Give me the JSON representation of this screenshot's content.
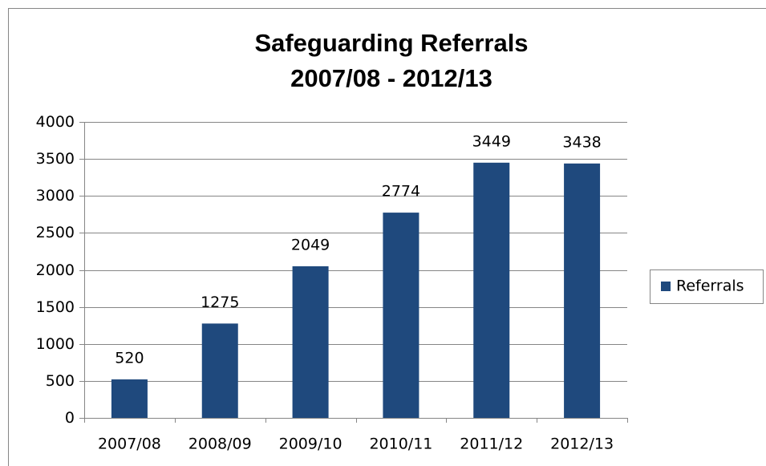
{
  "chart_data": {
    "type": "bar",
    "title": "Safeguarding Referrals",
    "subtitle": "2007/08 - 2012/13",
    "categories": [
      "2007/08",
      "2008/09",
      "2009/10",
      "2010/11",
      "2011/12",
      "2012/13"
    ],
    "series": [
      {
        "name": "Referrals",
        "color": "#1f497d",
        "values": [
          520,
          1275,
          2049,
          2774,
          3449,
          3438
        ]
      }
    ],
    "ylim": [
      0,
      4000
    ],
    "yticks": [
      0,
      500,
      1000,
      1500,
      2000,
      2500,
      3000,
      3500,
      4000
    ],
    "grid": true,
    "legend": "right",
    "data_labels": true
  }
}
